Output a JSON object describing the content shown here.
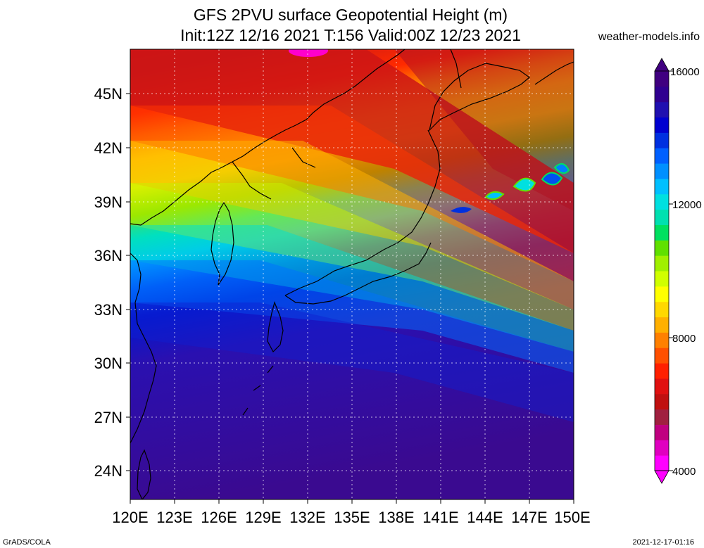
{
  "header": {
    "title_line1": "GFS 2PVU surface Geopotential Height (m)",
    "title_line2": "Init:12Z 12/16 2021 T:156 Valid:00Z 12/23 2021",
    "site": "weather-models.info"
  },
  "axes": {
    "lat_labels": [
      "45N",
      "42N",
      "39N",
      "36N",
      "33N",
      "30N",
      "27N",
      "24N"
    ],
    "lon_labels": [
      "120E",
      "123E",
      "126E",
      "129E",
      "132E",
      "135E",
      "138E",
      "141E",
      "144E",
      "147E",
      "150E"
    ]
  },
  "colorbar": {
    "labels": [
      "16000",
      "12000",
      "8000",
      "4000"
    ],
    "colors": [
      "#ff00ff",
      "#e000c0",
      "#c00080",
      "#a02040",
      "#c01010",
      "#e01010",
      "#ff2000",
      "#ff5000",
      "#ff8000",
      "#ffb000",
      "#ffd800",
      "#ffff00",
      "#d0ff00",
      "#a0f000",
      "#60e000",
      "#00e060",
      "#00e0b0",
      "#00e0e0",
      "#00c0ff",
      "#0090ff",
      "#0060ff",
      "#0030e0",
      "#0000d0",
      "#2010b0",
      "#300090",
      "#400080"
    ]
  },
  "footer": {
    "left": "GrADS/COLA",
    "right": "2021-12-17-01:16"
  }
}
